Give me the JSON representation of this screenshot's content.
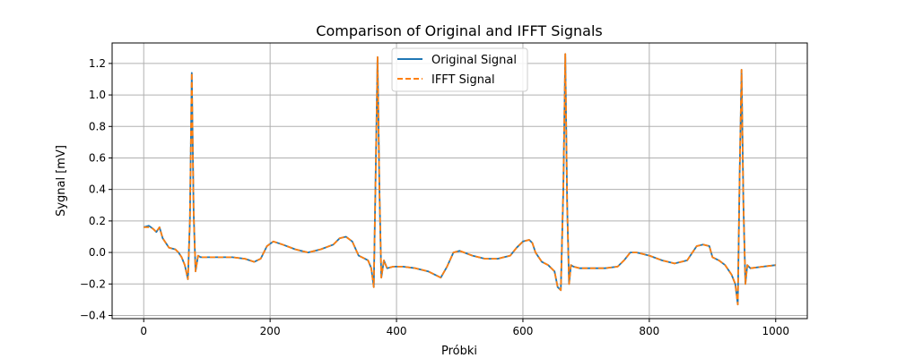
{
  "chart_data": {
    "type": "line",
    "title": "Comparison of Original and IFFT Signals",
    "xlabel": "Próbki",
    "ylabel": "Sygnal [mV]",
    "xlim": [
      -50,
      1050
    ],
    "ylim": [
      -0.42,
      1.33
    ],
    "xticks": [
      0,
      200,
      400,
      600,
      800,
      1000
    ],
    "yticks": [
      -0.4,
      -0.2,
      0.0,
      0.2,
      0.4,
      0.6,
      0.8,
      1.0,
      1.2
    ],
    "xtick_labels": [
      "0",
      "200",
      "400",
      "600",
      "800",
      "1000"
    ],
    "ytick_labels": [
      "−0.4",
      "−0.2",
      "0.0",
      "0.2",
      "0.4",
      "0.6",
      "0.8",
      "1.0",
      "1.2"
    ],
    "grid": true,
    "legend_position": "top-center",
    "series": [
      {
        "name": "Original Signal",
        "color": "#1f77b4",
        "style": "solid",
        "x": [
          0,
          8,
          15,
          20,
          25,
          30,
          40,
          50,
          55,
          60,
          65,
          70,
          73,
          76,
          79,
          82,
          86,
          90,
          100,
          120,
          140,
          160,
          175,
          185,
          195,
          205,
          220,
          240,
          260,
          280,
          300,
          310,
          320,
          330,
          340,
          350,
          355,
          360,
          364,
          367,
          370,
          373,
          376,
          380,
          385,
          395,
          410,
          430,
          450,
          470,
          480,
          490,
          500,
          520,
          540,
          560,
          580,
          590,
          600,
          610,
          615,
          620,
          630,
          640,
          650,
          655,
          660,
          664,
          667,
          670,
          673,
          676,
          680,
          690,
          710,
          730,
          750,
          760,
          770,
          780,
          800,
          820,
          840,
          860,
          875,
          885,
          895,
          900,
          910,
          920,
          930,
          936,
          940,
          943,
          946,
          949,
          952,
          955,
          960,
          980,
          1000
        ],
        "y": [
          0.16,
          0.17,
          0.15,
          0.13,
          0.16,
          0.09,
          0.03,
          0.02,
          0.0,
          -0.03,
          -0.08,
          -0.17,
          0.2,
          1.14,
          0.25,
          -0.12,
          -0.02,
          -0.03,
          -0.03,
          -0.03,
          -0.03,
          -0.04,
          -0.06,
          -0.04,
          0.04,
          0.07,
          0.05,
          0.02,
          0.0,
          0.02,
          0.05,
          0.09,
          0.1,
          0.07,
          -0.02,
          -0.04,
          -0.05,
          -0.1,
          -0.22,
          0.5,
          1.24,
          0.4,
          -0.16,
          -0.05,
          -0.1,
          -0.09,
          -0.09,
          -0.1,
          -0.12,
          -0.16,
          -0.09,
          0.0,
          0.01,
          -0.02,
          -0.04,
          -0.04,
          -0.02,
          0.03,
          0.07,
          0.08,
          0.06,
          0.0,
          -0.06,
          -0.08,
          -0.12,
          -0.22,
          -0.24,
          0.4,
          1.26,
          0.3,
          -0.2,
          -0.08,
          -0.09,
          -0.1,
          -0.1,
          -0.1,
          -0.09,
          -0.05,
          0.0,
          0.0,
          -0.02,
          -0.05,
          -0.07,
          -0.05,
          0.04,
          0.05,
          0.04,
          -0.03,
          -0.05,
          -0.08,
          -0.14,
          -0.2,
          -0.33,
          0.5,
          1.16,
          0.3,
          -0.2,
          -0.08,
          -0.1,
          -0.09,
          -0.08
        ]
      },
      {
        "name": "IFFT Signal",
        "color": "#ff7f0e",
        "style": "dashed",
        "x": [
          0,
          8,
          15,
          20,
          25,
          30,
          40,
          50,
          55,
          60,
          65,
          70,
          73,
          76,
          79,
          82,
          86,
          90,
          100,
          120,
          140,
          160,
          175,
          185,
          195,
          205,
          220,
          240,
          260,
          280,
          300,
          310,
          320,
          330,
          340,
          350,
          355,
          360,
          364,
          367,
          370,
          373,
          376,
          380,
          385,
          395,
          410,
          430,
          450,
          470,
          480,
          490,
          500,
          520,
          540,
          560,
          580,
          590,
          600,
          610,
          615,
          620,
          630,
          640,
          650,
          655,
          660,
          664,
          667,
          670,
          673,
          676,
          680,
          690,
          710,
          730,
          750,
          760,
          770,
          780,
          800,
          820,
          840,
          860,
          875,
          885,
          895,
          900,
          910,
          920,
          930,
          936,
          940,
          943,
          946,
          949,
          952,
          955,
          960,
          980,
          1000
        ],
        "y": [
          0.16,
          0.16,
          0.15,
          0.13,
          0.16,
          0.09,
          0.03,
          0.02,
          0.0,
          -0.03,
          -0.08,
          -0.17,
          0.2,
          1.14,
          0.25,
          -0.12,
          -0.02,
          -0.03,
          -0.03,
          -0.03,
          -0.03,
          -0.04,
          -0.06,
          -0.04,
          0.04,
          0.07,
          0.05,
          0.02,
          0.0,
          0.02,
          0.05,
          0.09,
          0.1,
          0.07,
          -0.02,
          -0.04,
          -0.05,
          -0.1,
          -0.22,
          0.5,
          1.24,
          0.4,
          -0.16,
          -0.05,
          -0.1,
          -0.09,
          -0.09,
          -0.1,
          -0.12,
          -0.16,
          -0.09,
          0.0,
          0.01,
          -0.02,
          -0.04,
          -0.04,
          -0.02,
          0.03,
          0.07,
          0.08,
          0.06,
          0.0,
          -0.06,
          -0.08,
          -0.12,
          -0.22,
          -0.24,
          0.4,
          1.26,
          0.3,
          -0.2,
          -0.08,
          -0.09,
          -0.1,
          -0.1,
          -0.1,
          -0.09,
          -0.05,
          0.0,
          0.0,
          -0.02,
          -0.05,
          -0.07,
          -0.05,
          0.04,
          0.05,
          0.04,
          -0.03,
          -0.05,
          -0.08,
          -0.14,
          -0.2,
          -0.33,
          0.5,
          1.16,
          0.3,
          -0.2,
          -0.08,
          -0.1,
          -0.09,
          -0.08
        ]
      }
    ]
  }
}
